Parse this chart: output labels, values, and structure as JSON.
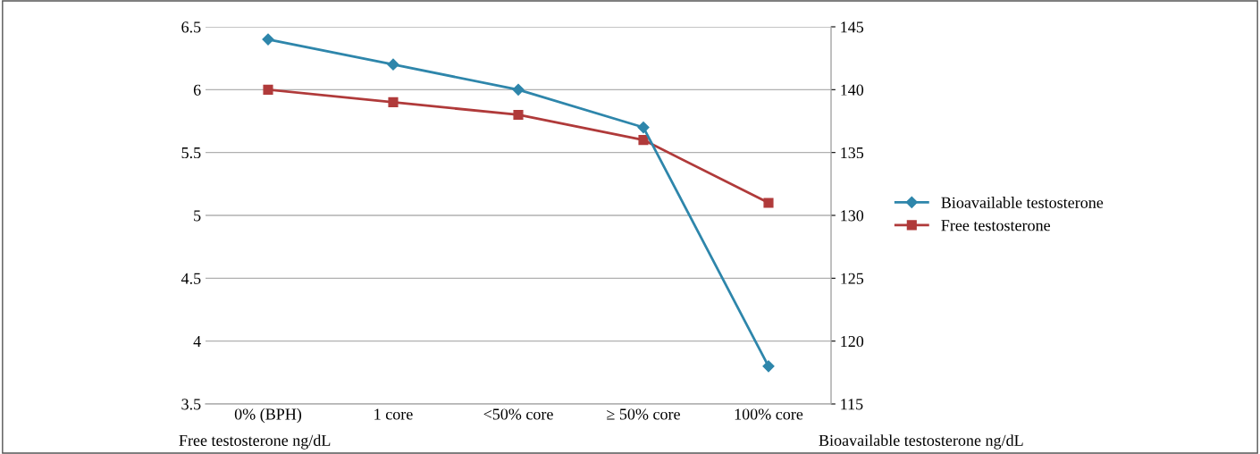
{
  "chart_data": {
    "type": "line",
    "categories": [
      "0% (BPH)",
      "1 core",
      "<50% core",
      "≥ 50% core",
      "100% core"
    ],
    "series": [
      {
        "name": "Bioavailable testosterone",
        "color": "#2e86ab",
        "marker": "diamond",
        "axis": "y2",
        "values": [
          144,
          142,
          140,
          137,
          118
        ]
      },
      {
        "name": "Free testosterone",
        "color": "#b03a3a",
        "marker": "square",
        "values": [
          6.0,
          5.9,
          5.8,
          5.6,
          5.1
        ]
      }
    ],
    "ylabel": "Free testosterone ng/dL",
    "y2label": "Bioavailable testosterone ng/dL",
    "ylim": [
      3.5,
      6.5
    ],
    "yticks": [
      3.5,
      4,
      4.5,
      5,
      5.5,
      6,
      6.5
    ],
    "y2lim": [
      115,
      145
    ],
    "y2ticks": [
      115,
      120,
      125,
      130,
      135,
      140,
      145
    ],
    "grid": "y",
    "legend": "right"
  }
}
